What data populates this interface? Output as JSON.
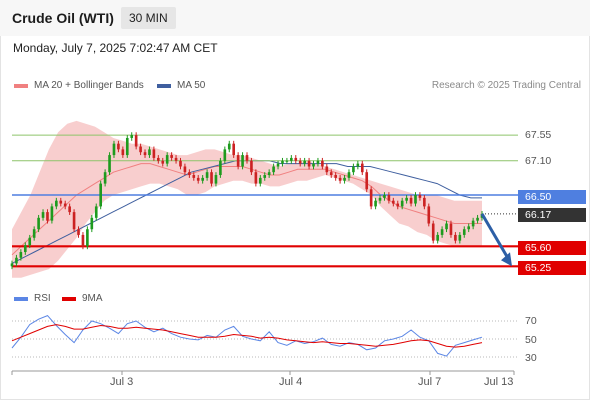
{
  "header": {
    "title": "Crude Oil (WTI)",
    "timeframe": "30 MIN"
  },
  "datetime": "Monday, July 7, 2025 7:02:47 AM CET",
  "legend": {
    "ma20": {
      "label": "MA 20 + Bollinger Bands",
      "color": "#f08080"
    },
    "ma50": {
      "label": "MA 50",
      "color": "#3f5f9f"
    }
  },
  "credit": "Research © 2025 Trading Central",
  "colors": {
    "up": "#1e9b1e",
    "down": "#cc2222",
    "support": "#e00000",
    "resistance": "#8ec46a",
    "pivot": "#4f7fe0",
    "price": "#333333",
    "arrow": "#2d5fa6",
    "band": "#f7c6c6"
  },
  "chart_data": [
    {
      "type": "candlestick",
      "ylim": [
        65.15,
        67.85
      ],
      "x_ticks": [
        "Jul 3",
        "Jul 4",
        "Jul 7",
        "Jul 13"
      ],
      "levels": [
        {
          "value": 67.55,
          "label": "67.55",
          "kind": "resistance"
        },
        {
          "value": 67.1,
          "label": "67.10",
          "kind": "resistance"
        },
        {
          "value": 66.5,
          "label": "66.50",
          "kind": "pivot"
        },
        {
          "value": 66.17,
          "label": "66.17",
          "kind": "price"
        },
        {
          "value": 65.6,
          "label": "65.60",
          "kind": "support"
        },
        {
          "value": 65.25,
          "label": "65.25",
          "kind": "support"
        }
      ],
      "close": [
        65.3,
        65.4,
        65.5,
        65.62,
        65.75,
        65.9,
        66.1,
        66.2,
        66.05,
        66.3,
        66.4,
        66.35,
        66.3,
        66.2,
        65.9,
        65.8,
        65.6,
        65.9,
        66.1,
        66.3,
        66.7,
        66.9,
        67.2,
        67.4,
        67.3,
        67.2,
        67.5,
        67.55,
        67.35,
        67.25,
        67.2,
        67.3,
        67.15,
        67.1,
        67.05,
        67.2,
        67.15,
        67.1,
        67.0,
        66.9,
        66.85,
        66.8,
        66.75,
        66.8,
        66.9,
        66.7,
        66.85,
        67.1,
        67.3,
        67.4,
        67.2,
        67.0,
        67.2,
        67.1,
        66.9,
        66.7,
        66.8,
        66.85,
        66.9,
        67.0,
        67.05,
        67.1,
        67.1,
        67.15,
        67.1,
        67.05,
        67.1,
        67.0,
        67.05,
        67.1,
        67.0,
        66.9,
        66.85,
        66.8,
        66.75,
        66.8,
        66.9,
        67.0,
        67.05,
        66.9,
        66.6,
        66.3,
        66.4,
        66.45,
        66.5,
        66.4,
        66.35,
        66.3,
        66.4,
        66.45,
        66.35,
        66.5,
        66.45,
        66.3,
        66.0,
        65.7,
        65.8,
        65.9,
        66.0,
        65.8,
        65.7,
        65.8,
        65.9,
        65.95,
        66.05,
        66.1,
        66.17
      ],
      "ma20": [
        65.45,
        65.6,
        65.75,
        65.9,
        66.05,
        66.2,
        66.35,
        66.5,
        66.6,
        66.7,
        66.8,
        66.9,
        66.95,
        67.0,
        67.05,
        67.05,
        67.0,
        66.95,
        66.9,
        66.85,
        66.9,
        66.95,
        67.0,
        67.0,
        67.0,
        67.0,
        66.95,
        66.9,
        66.85,
        66.85,
        66.9,
        66.95,
        66.95,
        66.95,
        66.95,
        66.9,
        66.85,
        66.8,
        66.75,
        66.65,
        66.5,
        66.4,
        66.3,
        66.25,
        66.2,
        66.15,
        66.1,
        66.05,
        66.0,
        66.0,
        66.0,
        66.0
      ],
      "ma20_upper": [
        65.9,
        66.2,
        66.5,
        66.9,
        67.3,
        67.6,
        67.75,
        67.8,
        67.75,
        67.7,
        67.6,
        67.5,
        67.45,
        67.4,
        67.4,
        67.35,
        67.3,
        67.25,
        67.2,
        67.2,
        67.25,
        67.3,
        67.3,
        67.25,
        67.2,
        67.2,
        67.15,
        67.1,
        67.05,
        67.0,
        67.05,
        67.05,
        67.1,
        67.05,
        67.0,
        66.95,
        66.9,
        66.85,
        66.8,
        66.75,
        66.7,
        66.65,
        66.6,
        66.55,
        66.5,
        66.5,
        66.5,
        66.45,
        66.4,
        66.4,
        66.4,
        66.4
      ],
      "ma20_lower": [
        65.05,
        65.05,
        65.1,
        65.15,
        65.2,
        65.35,
        65.55,
        65.75,
        66.0,
        66.2,
        66.4,
        66.5,
        66.55,
        66.6,
        66.65,
        66.7,
        66.7,
        66.65,
        66.6,
        66.5,
        66.5,
        66.55,
        66.65,
        66.7,
        66.75,
        66.75,
        66.7,
        66.7,
        66.65,
        66.65,
        66.7,
        66.75,
        66.75,
        66.8,
        66.85,
        66.8,
        66.75,
        66.7,
        66.6,
        66.5,
        66.3,
        66.15,
        66.0,
        65.95,
        65.85,
        65.8,
        65.7,
        65.65,
        65.6,
        65.6,
        65.6,
        65.6
      ],
      "ma50": [
        65.3,
        65.4,
        65.5,
        65.6,
        65.7,
        65.8,
        65.9,
        66.0,
        66.1,
        66.2,
        66.3,
        66.4,
        66.5,
        66.6,
        66.7,
        66.8,
        66.9,
        66.95,
        67.0,
        67.05,
        67.1,
        67.1,
        67.1,
        67.1,
        67.05,
        67.05,
        67.05,
        67.05,
        67.05,
        67.05,
        67.0,
        67.0,
        67.0,
        66.95,
        66.9,
        66.85,
        66.8,
        66.75,
        66.7,
        66.6,
        66.5,
        66.45,
        66.45
      ],
      "forecast_arrow": {
        "from": 66.17,
        "to": 65.25
      }
    },
    {
      "type": "line",
      "title": "RSI",
      "ylim": [
        20,
        80
      ],
      "y_ticks": [
        70,
        50,
        30
      ],
      "series": [
        {
          "name": "RSI",
          "color": "#5b86e5",
          "values": [
            40,
            52,
            66,
            72,
            76,
            65,
            55,
            46,
            60,
            70,
            67,
            62,
            56,
            67,
            70,
            63,
            58,
            62,
            56,
            52,
            50,
            49,
            54,
            52,
            60,
            64,
            53,
            50,
            48,
            58,
            46,
            43,
            48,
            45,
            47,
            51,
            44,
            42,
            46,
            44,
            38,
            40,
            48,
            50,
            53,
            60,
            52,
            48,
            34,
            31,
            43,
            46,
            49,
            52
          ]
        },
        {
          "name": "9MA",
          "color": "#e00000",
          "values": [
            48,
            52,
            56,
            60,
            64,
            66,
            64,
            61,
            61,
            63,
            65,
            64,
            62,
            62,
            63,
            62,
            61,
            60,
            58,
            56,
            54,
            52,
            52,
            52,
            53,
            55,
            54,
            53,
            51,
            52,
            51,
            49,
            48,
            47,
            46,
            47,
            46,
            45,
            45,
            44,
            43,
            42,
            43,
            44,
            46,
            48,
            49,
            48,
            45,
            42,
            41,
            42,
            44,
            46
          ]
        }
      ]
    }
  ]
}
